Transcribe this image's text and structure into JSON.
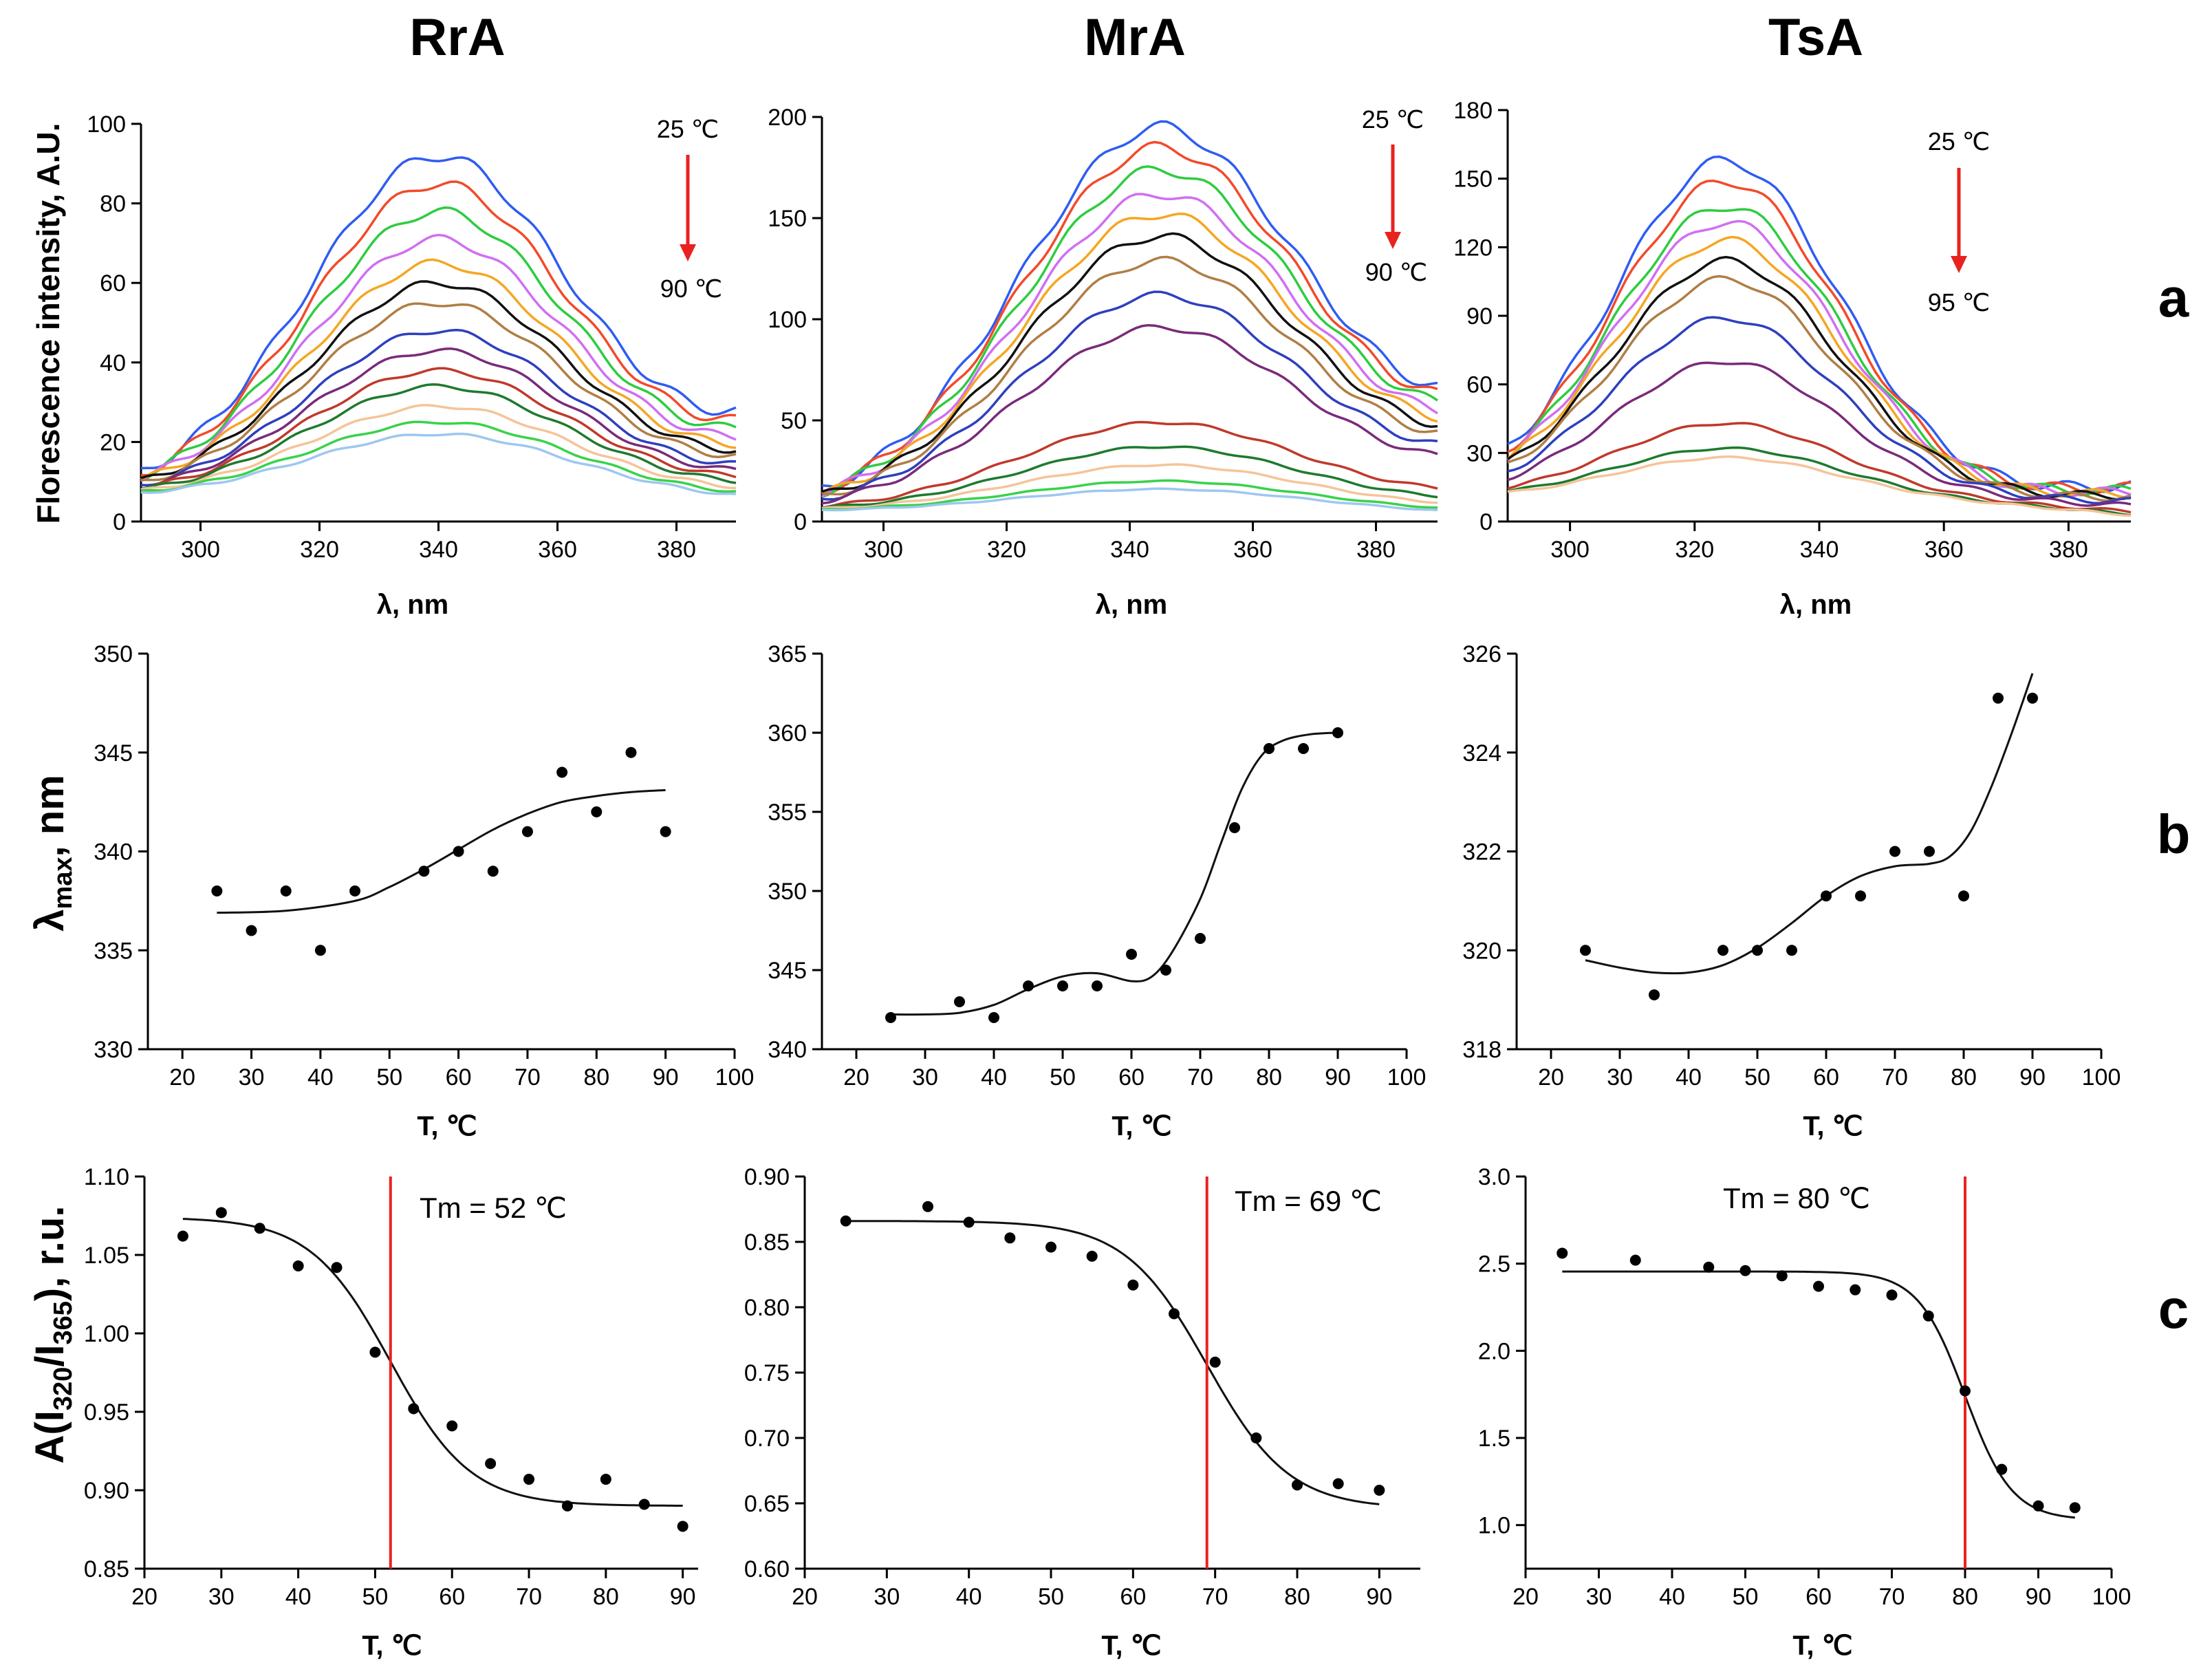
{
  "titles": [
    "RrA",
    "MrA",
    "TsA"
  ],
  "row_labels": [
    "a",
    "b",
    "c"
  ],
  "ylabels": {
    "a": "Florescence intensity, A.U.",
    "b": {
      "main": "λ",
      "sub": "max",
      "tail": ", nm"
    },
    "c": {
      "main": "A(I",
      "sub1": "320",
      "mid": "/I",
      "sub2": "365",
      "tail": "), r.u."
    }
  },
  "xlabels": {
    "a": "λ, nm",
    "b": "T, ℃",
    "c": "T, ℃"
  },
  "arrows": [
    {
      "top": "25 ℃",
      "bottom": "90 ℃"
    },
    {
      "top": "25 ℃",
      "bottom": "90 ℃"
    },
    {
      "top": "25 ℃",
      "bottom": "95 ℃"
    }
  ],
  "tm_labels": [
    "Tm = 52 ℃",
    "Tm = 69 ℃",
    "Tm = 80 ℃"
  ],
  "colors": {
    "spectra": [
      "#2f5cf2",
      "#f24a2a",
      "#2ecc40",
      "#d06ff2",
      "#f5a623",
      "#111111",
      "#b07e45",
      "#2e3fbf",
      "#7a2a7a",
      "#c0392b",
      "#1e7a2e",
      "#f5c49a",
      "#39d24a",
      "#9ec7f0"
    ],
    "fit": "#111111",
    "tm_line": "#e8221f",
    "arrow": "#e8221f"
  },
  "chart_data": [
    {
      "panel": "a",
      "protein": "RrA",
      "type": "line",
      "title": "RrA",
      "xlabel": "λ, nm",
      "ylabel": "Florescence intensity, A.U.",
      "xlim": [
        290,
        390
      ],
      "ylim": [
        0,
        100
      ],
      "xticks": [
        300,
        320,
        340,
        360,
        380
      ],
      "yticks": [
        0,
        20,
        40,
        60,
        80,
        100
      ],
      "peak_x": 340,
      "peak_sigma": 22,
      "start_y": 6,
      "end_frac": 0.3,
      "series_peaks": [
        92,
        85,
        78,
        71,
        65,
        60,
        55,
        48,
        43,
        38,
        34,
        29,
        25,
        22
      ]
    },
    {
      "panel": "a",
      "protein": "MrA",
      "type": "line",
      "title": "MrA",
      "xlabel": "λ, nm",
      "ylabel": "",
      "xlim": [
        290,
        390
      ],
      "ylim": [
        0,
        200
      ],
      "xticks": [
        300,
        320,
        340,
        360,
        380
      ],
      "yticks": [
        0,
        50,
        100,
        150,
        200
      ],
      "peak_x": 345,
      "peak_sigma": 23,
      "start_y": 5,
      "end_frac": 0.34,
      "series_peaks": [
        195,
        185,
        174,
        162,
        152,
        141,
        129,
        112,
        96,
        49,
        37,
        28,
        20,
        16
      ]
    },
    {
      "panel": "a",
      "protein": "TsA",
      "type": "line",
      "title": "TsA",
      "xlabel": "λ, nm",
      "ylabel": "",
      "xlim": [
        290,
        390
      ],
      "ylim": [
        0,
        180
      ],
      "xticks": [
        300,
        320,
        340,
        360,
        380
      ],
      "yticks": [
        0,
        30,
        60,
        90,
        120,
        150,
        180
      ],
      "peak_x": 325,
      "peak_sigma": 18,
      "start_y": 10,
      "end_frac": 0.1,
      "series_peaks": [
        158,
        149,
        138,
        131,
        123,
        114,
        106,
        89,
        70,
        43,
        32,
        28
      ]
    },
    {
      "panel": "b",
      "protein": "RrA",
      "type": "scatter",
      "xlabel": "T, ℃",
      "ylabel": "λmax, nm",
      "xlim": [
        15,
        100
      ],
      "ylim": [
        330,
        350
      ],
      "xticks": [
        20,
        30,
        40,
        50,
        60,
        70,
        80,
        90,
        100
      ],
      "yticks": [
        330,
        335,
        340,
        345,
        350
      ],
      "x": [
        25,
        30,
        35,
        40,
        45,
        55,
        60,
        65,
        70,
        75,
        80,
        85,
        90
      ],
      "y": [
        338,
        336,
        338,
        335,
        338,
        339,
        340,
        339,
        341,
        344,
        342,
        345,
        341
      ],
      "fit": {
        "x": [
          25,
          35,
          45,
          50,
          55,
          60,
          65,
          70,
          75,
          80,
          85,
          90
        ],
        "y": [
          336.9,
          337.0,
          337.5,
          338.2,
          339.1,
          340.1,
          341.1,
          341.9,
          342.5,
          342.8,
          343.0,
          343.1
        ]
      }
    },
    {
      "panel": "b",
      "protein": "MrA",
      "type": "scatter",
      "xlabel": "T, ℃",
      "ylabel": "",
      "xlim": [
        15,
        100
      ],
      "ylim": [
        340,
        365
      ],
      "xticks": [
        20,
        30,
        40,
        50,
        60,
        70,
        80,
        90,
        100
      ],
      "yticks": [
        340,
        345,
        350,
        355,
        360,
        365
      ],
      "x": [
        25,
        35,
        40,
        45,
        50,
        55,
        60,
        65,
        70,
        75,
        80,
        85,
        90
      ],
      "y": [
        342,
        343,
        342,
        344,
        344,
        344,
        346,
        345,
        347,
        354,
        359,
        359,
        360
      ],
      "fit": {
        "x": [
          25,
          30,
          35,
          40,
          45,
          50,
          55,
          60,
          63,
          66,
          70,
          73,
          76,
          79,
          82,
          86,
          90
        ],
        "y": [
          342.2,
          342.2,
          342.3,
          342.8,
          343.8,
          344.6,
          344.8,
          344.3,
          344.6,
          346.2,
          349.5,
          353.0,
          356.4,
          358.6,
          359.5,
          359.9,
          360.0
        ]
      }
    },
    {
      "panel": "b",
      "protein": "TsA",
      "type": "scatter",
      "xlabel": "T, ℃",
      "ylabel": "",
      "xlim": [
        15,
        100
      ],
      "ylim": [
        318,
        326
      ],
      "xticks": [
        20,
        30,
        40,
        50,
        60,
        70,
        80,
        90,
        100
      ],
      "yticks": [
        318,
        320,
        322,
        324,
        326
      ],
      "x": [
        25,
        35,
        45,
        50,
        55,
        60,
        65,
        70,
        75,
        80,
        85,
        90
      ],
      "y": [
        320,
        319.1,
        320,
        320,
        320,
        321.1,
        321.1,
        322,
        322,
        321.1,
        325.1,
        325.1
      ],
      "fit": {
        "x": [
          25,
          30,
          35,
          40,
          45,
          50,
          55,
          60,
          65,
          70,
          75,
          78,
          81,
          84,
          87,
          90
        ],
        "y": [
          319.8,
          319.65,
          319.55,
          319.55,
          319.7,
          320.05,
          320.55,
          321.1,
          321.5,
          321.7,
          321.75,
          321.9,
          322.4,
          323.3,
          324.4,
          325.6
        ]
      }
    },
    {
      "panel": "c",
      "protein": "RrA",
      "type": "scatter",
      "xlabel": "T, ℃",
      "ylabel": "A(I320/I365), r.u.",
      "xlim": [
        20,
        92
      ],
      "ylim": [
        0.85,
        1.1
      ],
      "xticks": [
        20,
        30,
        40,
        50,
        60,
        70,
        80,
        90
      ],
      "yticks": [
        0.85,
        0.9,
        0.95,
        1.0,
        1.05,
        1.1
      ],
      "x": [
        25,
        30,
        35,
        40,
        45,
        50,
        55,
        60,
        65,
        70,
        75,
        80,
        85,
        90
      ],
      "y": [
        1.062,
        1.077,
        1.067,
        1.043,
        1.042,
        0.988,
        0.952,
        0.941,
        0.917,
        0.907,
        0.89,
        0.907,
        0.891,
        0.877
      ],
      "fit": {
        "type": "sigmoid",
        "top": 1.074,
        "bottom": 0.89,
        "tm": 52,
        "slope": 5.2,
        "x_start": 25,
        "x_end": 90
      },
      "tm": 52,
      "tm_label": "Tm = 52 ℃"
    },
    {
      "panel": "c",
      "protein": "MrA",
      "type": "scatter",
      "xlabel": "T, ℃",
      "ylabel": "",
      "xlim": [
        20,
        95
      ],
      "ylim": [
        0.6,
        0.9
      ],
      "xticks": [
        20,
        30,
        40,
        50,
        60,
        70,
        80,
        90
      ],
      "yticks": [
        0.6,
        0.65,
        0.7,
        0.75,
        0.8,
        0.85,
        0.9
      ],
      "x": [
        25,
        35,
        40,
        45,
        50,
        55,
        60,
        65,
        70,
        75,
        80,
        85,
        90
      ],
      "y": [
        0.866,
        0.877,
        0.865,
        0.853,
        0.846,
        0.839,
        0.817,
        0.795,
        0.758,
        0.7,
        0.664,
        0.665,
        0.66
      ],
      "fit": {
        "type": "sigmoid",
        "top": 0.866,
        "bottom": 0.646,
        "tm": 69,
        "slope": 5.0,
        "x_start": 25,
        "x_end": 90
      },
      "tm": 69,
      "tm_label": "Tm = 69 ℃"
    },
    {
      "panel": "c",
      "protein": "TsA",
      "type": "scatter",
      "xlabel": "T, ℃",
      "ylabel": "",
      "xlim": [
        20,
        100
      ],
      "ylim": [
        0.75,
        3.0
      ],
      "xticks": [
        20,
        30,
        40,
        50,
        60,
        70,
        80,
        90,
        100
      ],
      "yticks": [
        1.0,
        1.5,
        2.0,
        2.5,
        3.0
      ],
      "x": [
        25,
        35,
        45,
        50,
        55,
        60,
        65,
        70,
        75,
        80,
        85,
        90,
        95
      ],
      "y": [
        2.56,
        2.52,
        2.48,
        2.46,
        2.43,
        2.37,
        2.35,
        2.32,
        2.2,
        1.77,
        1.32,
        1.11,
        1.1
      ],
      "fit": {
        "type": "sigmoid",
        "top": 2.455,
        "bottom": 1.03,
        "tm": 80,
        "slope": 3.2,
        "x_start": 25,
        "x_end": 95
      },
      "tm": 80,
      "tm_label": "Tm = 80 ℃"
    }
  ]
}
